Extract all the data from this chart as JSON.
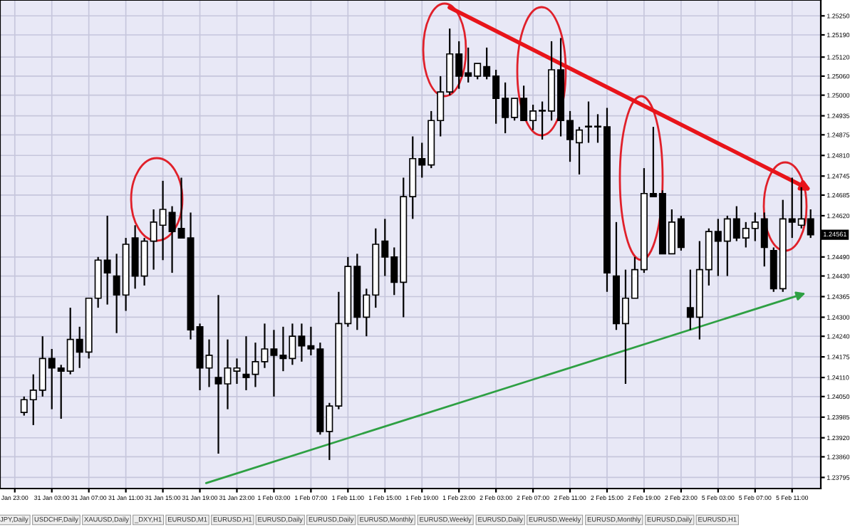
{
  "chart_data": {
    "type": "candlestick",
    "categories": [
      "Jan 23:00",
      null,
      null,
      null,
      "31 Jan 03:00",
      null,
      null,
      null,
      "31 Jan 07:00",
      null,
      null,
      null,
      "31 Jan 11:00",
      null,
      null,
      null,
      "31 Jan 15:00",
      null,
      null,
      null,
      "31 Jan 19:00",
      null,
      null,
      null,
      "31 Jan 23:00",
      null,
      null,
      null,
      "1 Feb 03:00",
      null,
      null,
      null,
      "1 Feb 07:00",
      null,
      null,
      null,
      "1 Feb 11:00",
      null,
      null,
      null,
      "1 Feb 15:00",
      null,
      null,
      null,
      "1 Feb 19:00",
      null,
      null,
      null,
      "1 Feb 23:00",
      null,
      null,
      null,
      "2 Feb 03:00",
      null,
      null,
      null,
      "2 Feb 07:00",
      null,
      null,
      null,
      "2 Feb 11:00",
      null,
      null,
      null,
      "2 Feb 15:00",
      null,
      null,
      null,
      "2 Feb 19:00",
      null,
      null,
      null,
      "2 Feb 23:00",
      null,
      null,
      null,
      "5 Feb 03:00",
      null,
      null,
      null,
      "5 Feb 07:00",
      null,
      null,
      null,
      "5 Feb 11:00",
      null,
      null
    ],
    "ohlc": [
      null,
      [
        1.24,
        1.2405,
        1.2399,
        1.2404
      ],
      [
        1.2404,
        1.2412,
        1.2396,
        1.2407
      ],
      [
        1.2407,
        1.2424,
        1.2405,
        1.2417
      ],
      [
        1.2417,
        1.242,
        1.2401,
        1.2414
      ],
      [
        1.2414,
        1.2415,
        1.2398,
        1.2413
      ],
      [
        1.2413,
        1.2433,
        1.2412,
        1.2423
      ],
      [
        1.2423,
        1.2427,
        1.2414,
        1.2419
      ],
      [
        1.2419,
        1.2436,
        1.2417,
        1.2436
      ],
      [
        1.2436,
        1.2449,
        1.2433,
        1.2448
      ],
      [
        1.2448,
        1.2462,
        1.2434,
        1.2444
      ],
      [
        1.2443,
        1.245,
        1.2425,
        1.2437
      ],
      [
        1.2437,
        1.2455,
        1.2432,
        1.2453
      ],
      [
        1.2455,
        1.2459,
        1.2439,
        1.2443
      ],
      [
        1.2443,
        1.2455,
        1.244,
        1.2454
      ],
      [
        1.2454,
        1.2464,
        1.2445,
        1.246
      ],
      [
        1.2459,
        1.2473,
        1.2448,
        1.2464
      ],
      [
        1.2463,
        1.2465,
        1.2444,
        1.2457
      ],
      [
        1.2458,
        1.2474,
        1.2455,
        1.2455
      ],
      [
        1.2455,
        1.2463,
        1.2423,
        1.2426
      ],
      [
        1.2427,
        1.2428,
        1.2407,
        1.2414
      ],
      [
        1.2414,
        1.2423,
        1.2408,
        1.2418
      ],
      [
        1.2411,
        1.2437,
        1.2387,
        1.2409
      ],
      [
        1.2409,
        1.2423,
        1.2401,
        1.2414
      ],
      [
        1.2413,
        1.2417,
        1.2409,
        1.2414
      ],
      [
        1.2412,
        1.2424,
        1.2407,
        1.2411
      ],
      [
        1.2412,
        1.2422,
        1.2408,
        1.2416
      ],
      [
        1.2416,
        1.2428,
        1.2414,
        1.242
      ],
      [
        1.242,
        1.2426,
        1.2405,
        1.2418
      ],
      [
        1.2418,
        1.2427,
        1.2413,
        1.2417
      ],
      [
        1.2417,
        1.2428,
        1.2415,
        1.2424
      ],
      [
        1.2424,
        1.2428,
        1.2416,
        1.2421
      ],
      [
        1.2421,
        1.2427,
        1.2418,
        1.242
      ],
      [
        1.242,
        1.2422,
        1.2393,
        1.2394
      ],
      [
        1.2394,
        1.2403,
        1.2385,
        1.2402
      ],
      [
        1.2402,
        1.2438,
        1.2401,
        1.2428
      ],
      [
        1.2428,
        1.2449,
        1.2427,
        1.2446
      ],
      [
        1.2446,
        1.245,
        1.2426,
        1.243
      ],
      [
        1.243,
        1.2439,
        1.2424,
        1.2437
      ],
      [
        1.2437,
        1.2458,
        1.2433,
        1.2453
      ],
      [
        1.2454,
        1.2461,
        1.2443,
        1.2449
      ],
      [
        1.2449,
        1.2452,
        1.2437,
        1.2441
      ],
      [
        1.2441,
        1.2474,
        1.243,
        1.2468
      ],
      [
        1.2468,
        1.2487,
        1.2461,
        1.248
      ],
      [
        1.248,
        1.2485,
        1.2474,
        1.2478
      ],
      [
        1.2478,
        1.2495,
        1.2477,
        1.2492
      ],
      [
        1.2492,
        1.2506,
        1.2487,
        1.2501
      ],
      [
        1.2501,
        1.2521,
        1.25,
        1.2513
      ],
      [
        1.2513,
        1.2517,
        1.2502,
        1.2506
      ],
      [
        1.2507,
        1.2515,
        1.2504,
        1.2506
      ],
      [
        1.2506,
        1.251,
        1.2505,
        1.251
      ],
      [
        1.2509,
        1.2515,
        1.2505,
        1.2506
      ],
      [
        1.2506,
        1.2508,
        1.2491,
        1.2499
      ],
      [
        1.2499,
        1.2504,
        1.2488,
        1.2493
      ],
      [
        1.2493,
        1.2499,
        1.2492,
        1.2499
      ],
      [
        1.2499,
        1.2503,
        1.2492,
        1.2492
      ],
      [
        1.2492,
        1.2497,
        1.2489,
        1.2495
      ],
      [
        1.2495,
        1.2498,
        1.2486,
        1.2495
      ],
      [
        1.2495,
        1.2517,
        1.2492,
        1.2508
      ],
      [
        1.2508,
        1.2518,
        1.2487,
        1.2492
      ],
      [
        1.2492,
        1.2495,
        1.2479,
        1.2486
      ],
      [
        1.2485,
        1.249,
        1.2475,
        1.2489
      ],
      [
        1.249,
        1.2498,
        1.2485,
        1.249
      ],
      [
        1.249,
        1.2494,
        1.2485,
        1.249
      ],
      [
        1.249,
        1.2496,
        1.2438,
        1.2444
      ],
      [
        1.2443,
        1.246,
        1.2426,
        1.2428
      ],
      [
        1.2428,
        1.2445,
        1.2409,
        1.2436
      ],
      [
        1.2436,
        1.2449,
        1.2436,
        1.2445
      ],
      [
        1.2445,
        1.2477,
        1.2444,
        1.2469
      ],
      [
        1.2469,
        1.249,
        1.2468,
        1.2468
      ],
      [
        1.2469,
        1.247,
        1.245,
        1.245
      ],
      [
        1.245,
        1.2464,
        1.245,
        1.246
      ],
      [
        1.2461,
        1.2462,
        1.2451,
        1.2452
      ],
      [
        1.2433,
        1.2445,
        1.2426,
        1.243
      ],
      [
        1.243,
        1.2454,
        1.2423,
        1.2445
      ],
      [
        1.2445,
        1.2458,
        1.244,
        1.2457
      ],
      [
        1.2457,
        1.2461,
        1.2443,
        1.2454
      ],
      [
        1.2454,
        1.2462,
        1.2443,
        1.2461
      ],
      [
        1.2461,
        1.2465,
        1.2454,
        1.2455
      ],
      [
        1.2455,
        1.246,
        1.2452,
        1.2458
      ],
      [
        1.2458,
        1.2463,
        1.2454,
        1.246
      ],
      [
        1.2461,
        1.2463,
        1.2446,
        1.2452
      ],
      [
        1.2451,
        1.2452,
        1.2438,
        1.2439
      ],
      [
        1.2439,
        1.2467,
        1.2438,
        1.2461
      ],
      [
        1.2461,
        1.2474,
        1.2455,
        1.246
      ],
      [
        1.2459,
        1.2471,
        1.2458,
        1.2461
      ],
      [
        1.2461,
        1.2464,
        1.2455,
        1.2456
      ]
    ],
    "ylim": [
      1.2376,
      1.253
    ],
    "yticks": [
      {
        "value": 1.2525,
        "label": "1.25250"
      },
      {
        "value": 1.2519,
        "label": "1.25190"
      },
      {
        "value": 1.2512,
        "label": "1.25120"
      },
      {
        "value": 1.2506,
        "label": "1.25060"
      },
      {
        "value": 1.25,
        "label": "1.25000"
      },
      {
        "value": 1.24935,
        "label": "1.24935"
      },
      {
        "value": 1.24875,
        "label": "1.24875"
      },
      {
        "value": 1.2481,
        "label": "1.24810"
      },
      {
        "value": 1.24745,
        "label": "1.24745"
      },
      {
        "value": 1.24685,
        "label": "1.24685"
      },
      {
        "value": 1.2462,
        "label": "1.24620"
      },
      {
        "value": 1.2449,
        "label": "1.24490"
      },
      {
        "value": 1.2443,
        "label": "1.24430"
      },
      {
        "value": 1.24365,
        "label": "1.24365"
      },
      {
        "value": 1.243,
        "label": "1.24300"
      },
      {
        "value": 1.2424,
        "label": "1.24240"
      },
      {
        "value": 1.24175,
        "label": "1.24175"
      },
      {
        "value": 1.2411,
        "label": "1.24110"
      },
      {
        "value": 1.2405,
        "label": "1.24050"
      },
      {
        "value": 1.23985,
        "label": "1.23985"
      },
      {
        "value": 1.2392,
        "label": "1.23920"
      },
      {
        "value": 1.2386,
        "label": "1.23860"
      },
      {
        "value": 1.23795,
        "label": "1.23795"
      }
    ],
    "grid": true,
    "annotations": [
      "1.24561",
      "JPY,Daily",
      "USDCHF,Daily",
      "XAUUSD,Daily",
      "_DXY,H1",
      "EURUSD,M1",
      "EURUSD,H1",
      "EURUSD,Daily",
      "EURUSD,Daily",
      "EURUSD,Monthly",
      "EURUSD,Weekly",
      "EURUSD,Daily",
      "EURUSD,Weekly",
      "EURUSD,Monthly",
      "EURUSD,Daily",
      "EURUSD,H1"
    ]
  }
}
